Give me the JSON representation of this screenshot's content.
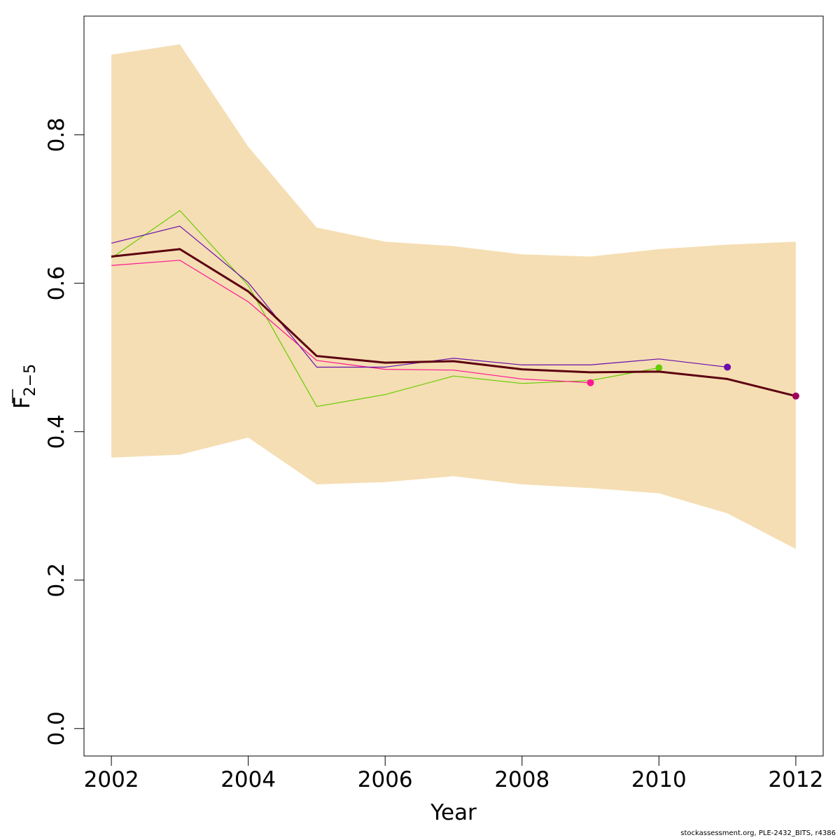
{
  "chart_data": {
    "type": "line",
    "xlabel": "Year",
    "ylabel": "F",
    "ylabel_sub": "2−5",
    "xlim": [
      2001.6,
      2012.4
    ],
    "ylim": [
      -0.037,
      0.96
    ],
    "xticks": [
      "2002",
      "2004",
      "2006",
      "2008",
      "2010",
      "2012"
    ],
    "xtick_values": [
      2002,
      2004,
      2006,
      2008,
      2010,
      2012
    ],
    "yticks": [
      "0.0",
      "0.2",
      "0.4",
      "0.6",
      "0.8"
    ],
    "ytick_values": [
      0.0,
      0.2,
      0.4,
      0.6,
      0.8
    ],
    "band": {
      "color": "#f5deb3",
      "x": [
        2002,
        2003,
        2004,
        2005,
        2006,
        2007,
        2008,
        2009,
        2010,
        2011,
        2012
      ],
      "upper": [
        0.908,
        0.922,
        0.784,
        0.675,
        0.656,
        0.65,
        0.639,
        0.636,
        0.646,
        0.652,
        0.656
      ],
      "lower": [
        0.365,
        0.369,
        0.392,
        0.329,
        0.332,
        0.34,
        0.329,
        0.324,
        0.317,
        0.29,
        0.242
      ]
    },
    "series": [
      {
        "color": "#66cc00",
        "x": [
          2002,
          2003,
          2004,
          2005,
          2006,
          2007,
          2008,
          2009,
          2010
        ],
        "values": [
          0.634,
          0.698,
          0.597,
          0.434,
          0.45,
          0.475,
          0.465,
          0.469,
          0.486
        ],
        "point": true
      },
      {
        "color": "#ff1493",
        "x": [
          2002,
          2003,
          2004,
          2005,
          2006,
          2007,
          2008,
          2009
        ],
        "values": [
          0.624,
          0.631,
          0.575,
          0.496,
          0.484,
          0.483,
          0.471,
          0.466
        ],
        "point": true
      },
      {
        "color": "#6a0dad",
        "x": [
          2002,
          2003,
          2004,
          2005,
          2006,
          2007,
          2008,
          2009,
          2010,
          2011
        ],
        "values": [
          0.654,
          0.677,
          0.601,
          0.487,
          0.487,
          0.499,
          0.49,
          0.49,
          0.498,
          0.487
        ],
        "point": true
      },
      {
        "color": "#5c0011",
        "x": [
          2002,
          2003,
          2004,
          2005,
          2006,
          2007,
          2008,
          2009,
          2010,
          2011,
          2012
        ],
        "values": [
          0.636,
          0.646,
          0.589,
          0.502,
          0.493,
          0.495,
          0.484,
          0.48,
          0.481,
          0.471,
          0.448
        ],
        "bold": true,
        "point_color": "#a0005a",
        "point": true
      }
    ]
  },
  "footer": "stockassessment.org, PLE-2432_BITS, r4386"
}
